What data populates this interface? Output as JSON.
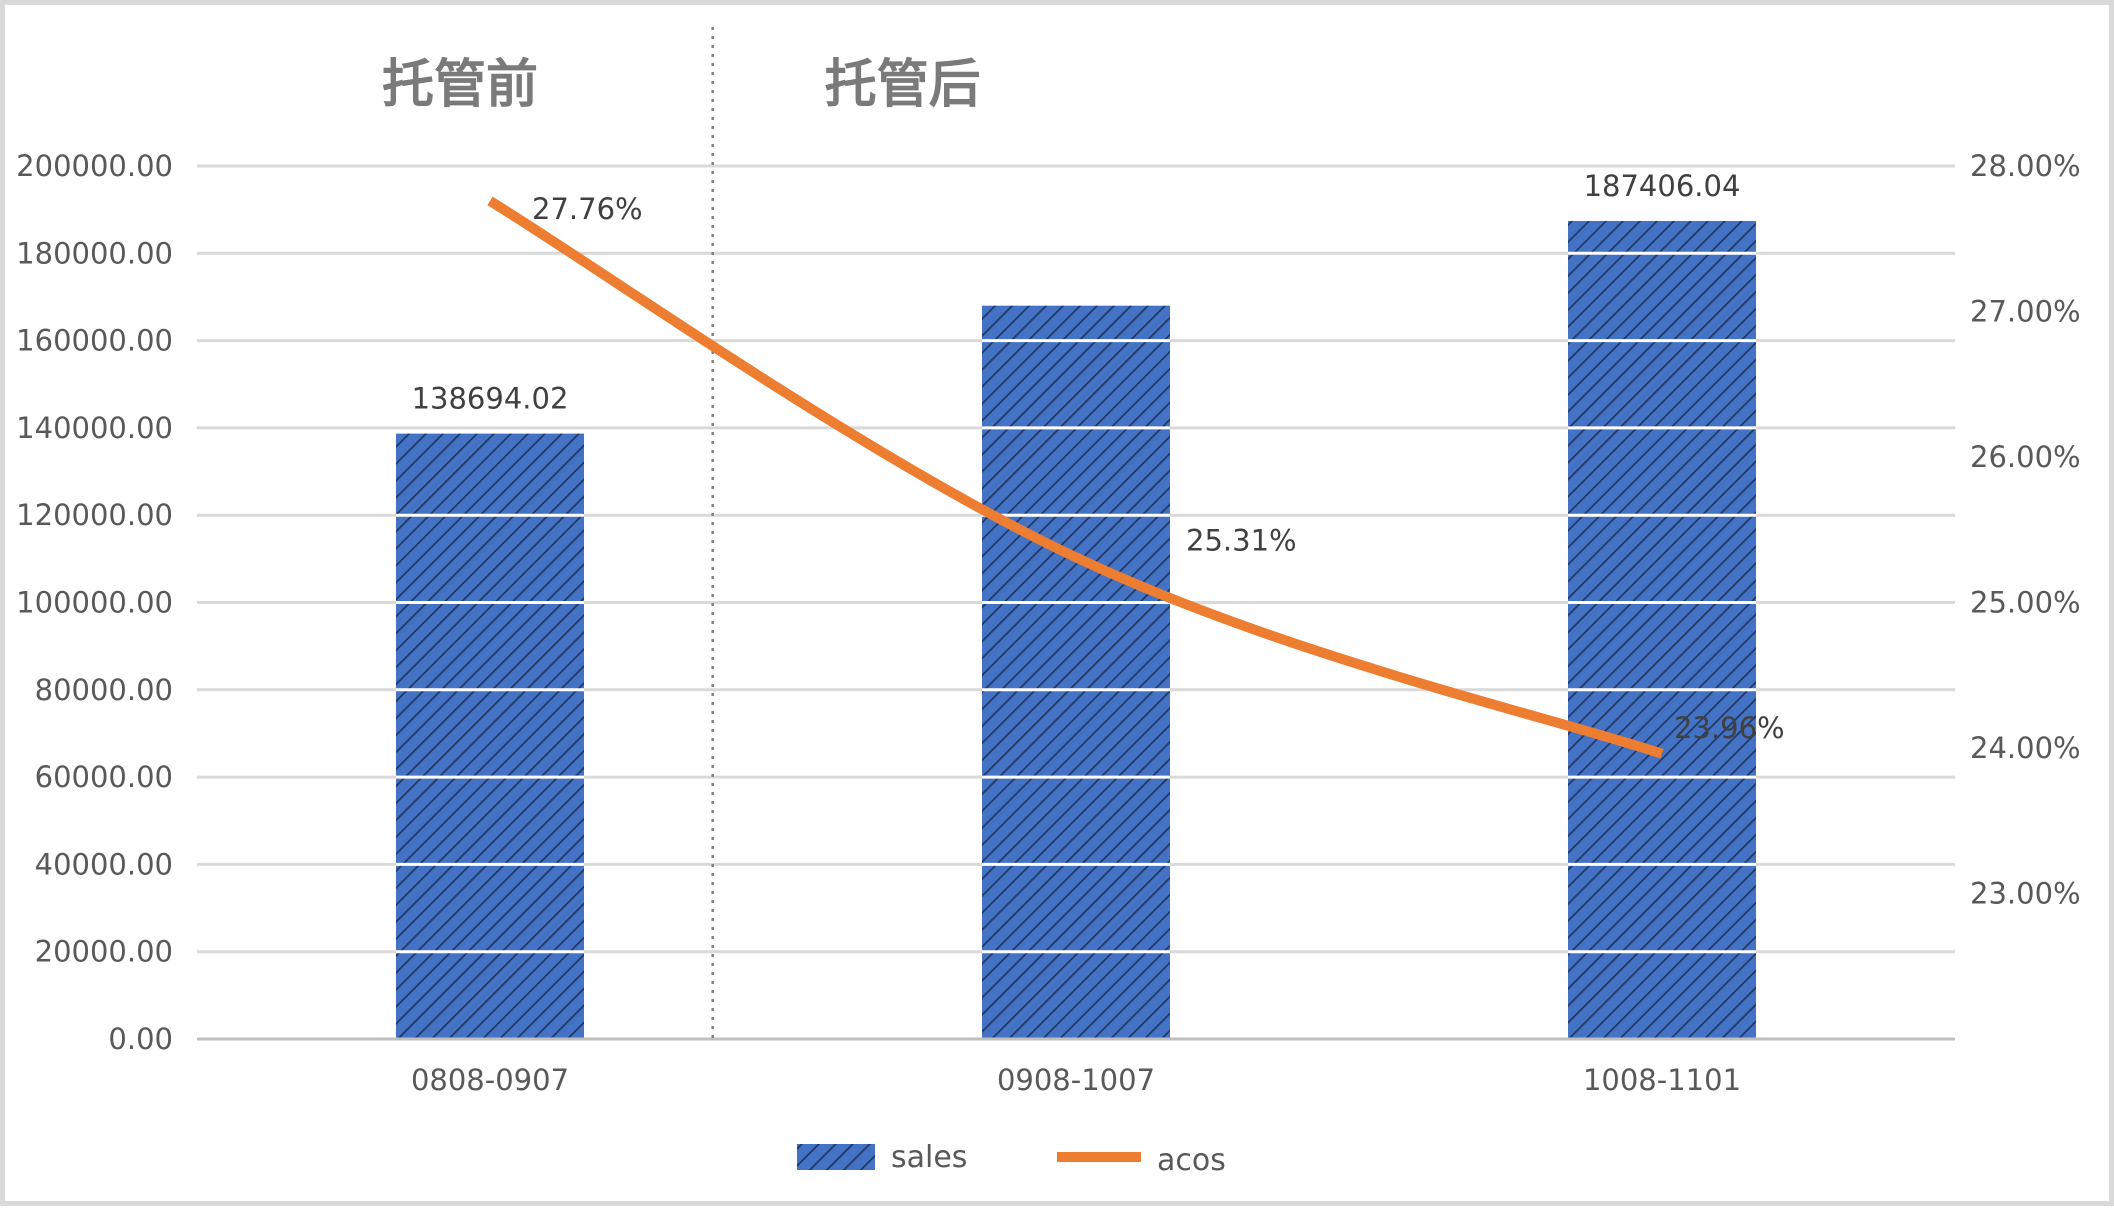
{
  "chart_data": {
    "type": "bar",
    "categories": [
      "0808-0907",
      "0908-1007",
      "1008-1101"
    ],
    "series": [
      {
        "name": "sales",
        "type": "bar",
        "axis": "left",
        "values": [
          138694.02,
          168000,
          187406.04
        ],
        "data_labels": [
          "138694.02",
          "",
          "187406.04"
        ],
        "color": "#4472C4",
        "pattern": "diagonal-hatch"
      },
      {
        "name": "acos",
        "type": "line",
        "axis": "right",
        "values": [
          27.76,
          25.31,
          23.96
        ],
        "data_labels": [
          "27.76%",
          "25.31%",
          "23.96%"
        ],
        "color": "#ED7D31"
      }
    ],
    "y_left": {
      "ylim": [
        0,
        200000
      ],
      "ticks": [
        0,
        20000,
        40000,
        60000,
        80000,
        100000,
        120000,
        140000,
        160000,
        180000,
        200000
      ],
      "tick_labels": [
        "0.00",
        "20000.00",
        "40000.00",
        "60000.00",
        "80000.00",
        "100000.00",
        "120000.00",
        "140000.00",
        "160000.00",
        "180000.00",
        "200000.00"
      ]
    },
    "y_right": {
      "ylim": [
        22,
        28
      ],
      "ticks": [
        23,
        24,
        25,
        26,
        27,
        28
      ],
      "tick_labels": [
        "23.00%",
        "24.00%",
        "25.00%",
        "26.00%",
        "27.00%",
        "28.00%"
      ]
    },
    "annotations": [
      {
        "text": "托管前",
        "region": "before"
      },
      {
        "text": "托管后",
        "region": "after"
      }
    ],
    "grid": true,
    "legend": "bottom",
    "legend_entries": [
      "sales",
      "acos"
    ]
  },
  "colors": {
    "bar_fill": "#4472C4",
    "bar_hatch": "#1F3864",
    "line": "#ED7D31",
    "grid": "#d9d9d9",
    "axis": "#bfbfbf",
    "divider": "#808080"
  }
}
